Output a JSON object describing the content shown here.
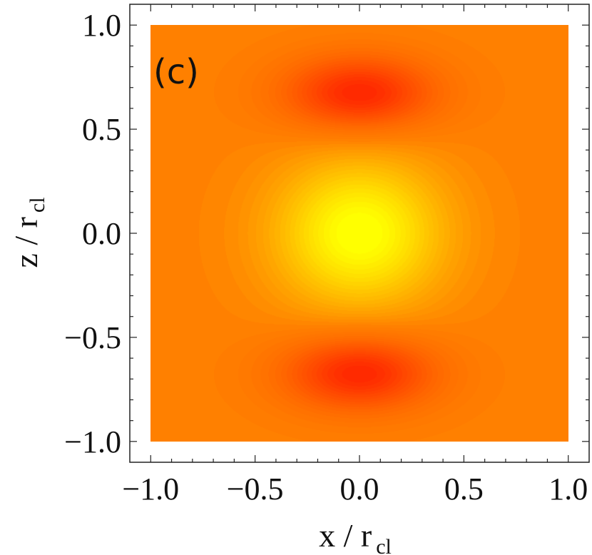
{
  "chart_data": {
    "type": "heatmap",
    "panel_label": "(c)",
    "xlabel": {
      "main": "x / r",
      "sub": "cl"
    },
    "ylabel": {
      "main": "z / r",
      "sub": "cl"
    },
    "xlim": [
      -1.1,
      1.1
    ],
    "ylim": [
      -1.1,
      1.1
    ],
    "x_ticks": [
      {
        "value": -1.0,
        "label": "−1.0"
      },
      {
        "value": -0.5,
        "label": "−0.5"
      },
      {
        "value": 0.0,
        "label": "0.0"
      },
      {
        "value": 0.5,
        "label": "0.5"
      },
      {
        "value": 1.0,
        "label": "1.0"
      }
    ],
    "y_ticks": [
      {
        "value": -1.0,
        "label": "−1.0"
      },
      {
        "value": -0.5,
        "label": "−0.5"
      },
      {
        "value": 0.0,
        "label": "0.0"
      },
      {
        "value": 0.5,
        "label": "0.5"
      },
      {
        "value": 1.0,
        "label": "1.0"
      }
    ],
    "colormap": {
      "background": "#ff8000",
      "stops": [
        "#ff1e00",
        "#ff4600",
        "#ff6800",
        "#ff8000",
        "#ffa000",
        "#ffc000",
        "#ffe000",
        "#ffff00"
      ],
      "domain": [
        -1.0,
        1.0
      ]
    },
    "features": [
      {
        "kind": "maximum",
        "x": -0.08,
        "z": 0.0,
        "sigma_x": 0.27,
        "sigma_z": 0.25,
        "amplitude": 0.55
      },
      {
        "kind": "maximum",
        "x": 0.08,
        "z": 0.0,
        "sigma_x": 0.27,
        "sigma_z": 0.25,
        "amplitude": 0.55
      },
      {
        "kind": "minimum",
        "x": 0.0,
        "z": 0.67,
        "sigma_x": 0.26,
        "sigma_z": 0.13,
        "amplitude": -0.95
      },
      {
        "kind": "minimum",
        "x": 0.0,
        "z": -0.67,
        "sigma_x": 0.26,
        "sigma_z": 0.13,
        "amplitude": -0.95
      }
    ]
  }
}
